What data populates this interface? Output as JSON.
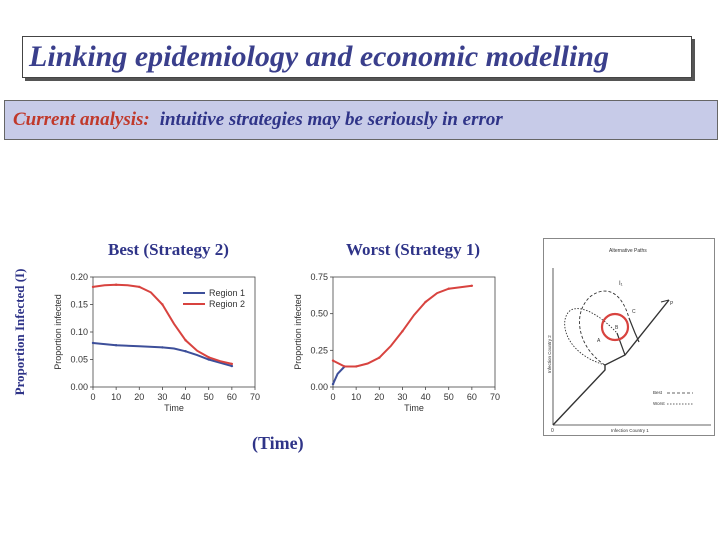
{
  "slide": {
    "title": "Linking epidemiology and economic modelling",
    "banner_lead": "Current analysis:",
    "banner_text": "intuitive strategies may be seriously in error",
    "rotated_ylabel": "Proportion Infected (I)",
    "time_label": "(Time)"
  },
  "colors": {
    "title": "#3a3f8c",
    "accent_red": "#c0392b",
    "banner_bg": "#c7cbe8",
    "region1": "#3d4f9a",
    "region2": "#d8433f"
  },
  "chart_data": [
    {
      "type": "line",
      "title": "Best (Strategy 2)",
      "xlabel": "Time",
      "ylabel": "Proportion infected",
      "xlim": [
        0,
        70
      ],
      "ylim": [
        0,
        0.2
      ],
      "xticks": [
        "0",
        "10",
        "20",
        "30",
        "40",
        "50",
        "60",
        "70"
      ],
      "yticks": [
        "0.00",
        "0.05",
        "0.10",
        "0.15",
        "0.20"
      ],
      "legend": "top-right",
      "series": [
        {
          "name": "Region 1",
          "color": "#3d4f9a",
          "x": [
            0,
            5,
            10,
            20,
            30,
            35,
            40,
            45,
            50,
            55,
            60
          ],
          "y": [
            0.08,
            0.078,
            0.076,
            0.074,
            0.072,
            0.07,
            0.065,
            0.058,
            0.05,
            0.044,
            0.038
          ]
        },
        {
          "name": "Region 2",
          "color": "#d8433f",
          "x": [
            0,
            5,
            10,
            15,
            20,
            25,
            30,
            35,
            40,
            45,
            50,
            55,
            60
          ],
          "y": [
            0.182,
            0.185,
            0.186,
            0.185,
            0.182,
            0.172,
            0.15,
            0.115,
            0.085,
            0.066,
            0.054,
            0.047,
            0.042
          ]
        }
      ]
    },
    {
      "type": "line",
      "title": "Worst (Strategy 1)",
      "xlabel": "Time",
      "ylabel": "Proportion infected",
      "xlim": [
        0,
        70
      ],
      "ylim": [
        0,
        0.75
      ],
      "xticks": [
        "0",
        "10",
        "20",
        "30",
        "40",
        "50",
        "60",
        "70"
      ],
      "yticks": [
        "0.00",
        "0.25",
        "0.50",
        "0.75"
      ],
      "series": [
        {
          "name": "",
          "color": "#3d4f9a",
          "x": [
            0,
            2,
            5
          ],
          "y": [
            0.02,
            0.09,
            0.14
          ]
        },
        {
          "name": "",
          "color": "#d8433f",
          "x": [
            0,
            5,
            10,
            15,
            20,
            25,
            30,
            35,
            40,
            45,
            50,
            55,
            60
          ],
          "y": [
            0.18,
            0.14,
            0.14,
            0.16,
            0.2,
            0.28,
            0.38,
            0.49,
            0.58,
            0.64,
            0.67,
            0.68,
            0.69
          ]
        }
      ]
    }
  ],
  "diagram": {
    "title": "Alternative Paths",
    "ylabel": "Infection Country 2",
    "xlabel": "Infection Country 1",
    "origin": "0",
    "labels": {
      "i1": "I₁",
      "p": "P",
      "c": "C",
      "b": "B",
      "a": "A"
    },
    "legend_best": "Best",
    "legend_worst": "Worst"
  }
}
